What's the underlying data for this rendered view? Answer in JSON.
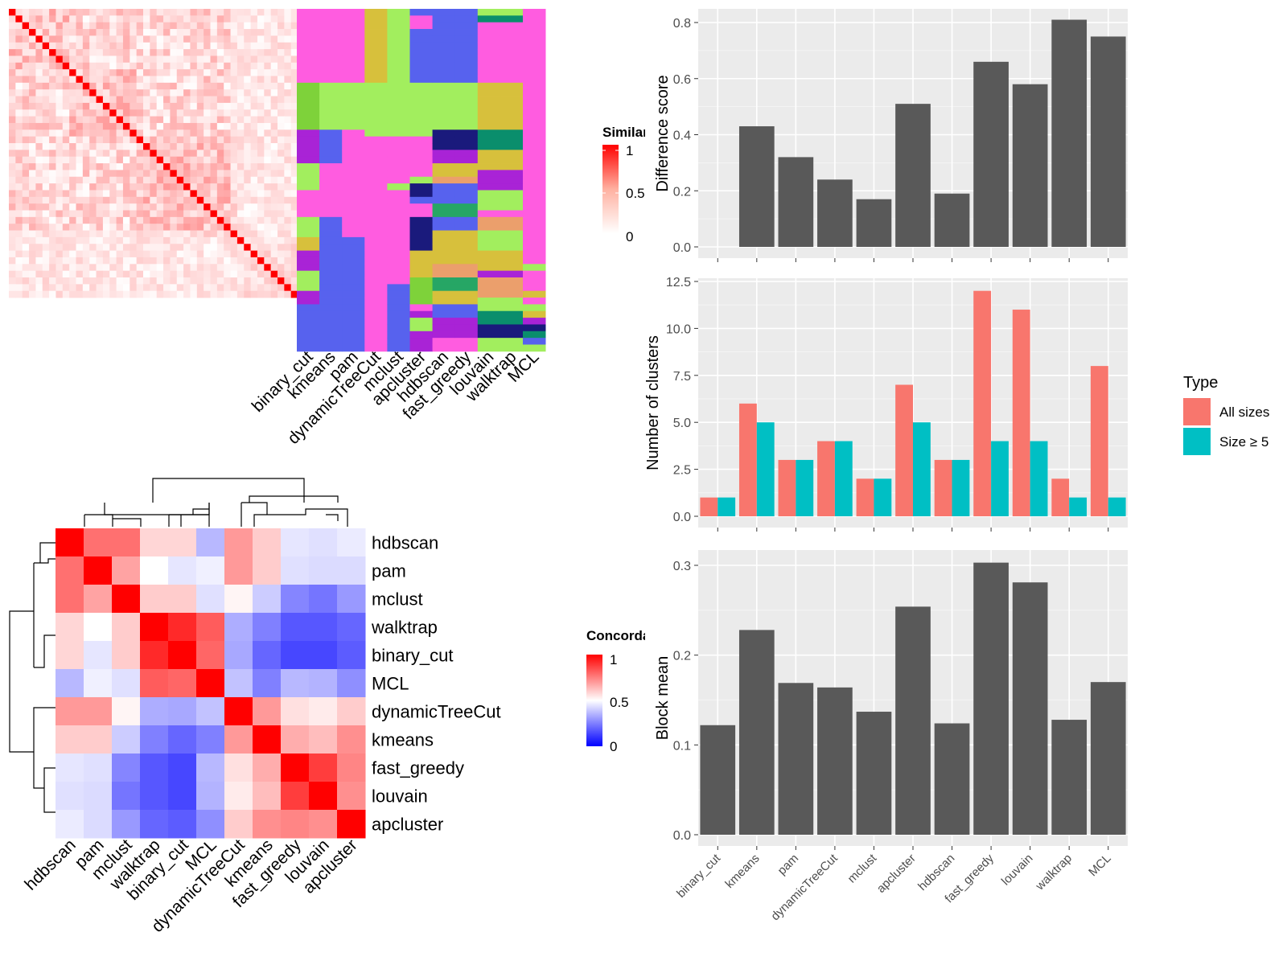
{
  "methods": [
    "binary_cut",
    "kmeans",
    "pam",
    "dynamicTreeCut",
    "mclust",
    "apcluster",
    "hdbscan",
    "fast_greedy",
    "louvain",
    "walktrap",
    "MCL"
  ],
  "similarity_legend": {
    "title": "Similarity",
    "ticks": [
      "1",
      "0.5",
      "0"
    ]
  },
  "concordance_legend": {
    "title": "Concordance",
    "ticks": [
      "1",
      "0.5",
      "0"
    ]
  },
  "colors": {
    "panel_bg": "#ebebeb",
    "grid": "#ffffff",
    "bar": "#595959",
    "all_sizes": "#f8766d",
    "size_ge5": "#00bfc4",
    "sim_high": "#ff0000",
    "conc_high": "#ff0000",
    "conc_mid": "#ffffff",
    "conc_low": "#0000ff"
  },
  "cluster_palette": [
    "#ff5ce0",
    "#a2ee5e",
    "#5762ee",
    "#d7c03c",
    "#7ed23a",
    "#a923d6",
    "#1a1a7c",
    "#0a8e6c",
    "#eb9f6c",
    "#26a665"
  ],
  "concordance_order": [
    "hdbscan",
    "pam",
    "mclust",
    "walktrap",
    "binary_cut",
    "MCL",
    "dynamicTreeCut",
    "kmeans",
    "fast_greedy",
    "louvain",
    "apcluster"
  ],
  "concordance_matrix": [
    [
      1.0,
      0.78,
      0.78,
      0.58,
      0.58,
      0.36,
      0.7,
      0.6,
      0.45,
      0.44,
      0.46
    ],
    [
      0.78,
      1.0,
      0.68,
      0.5,
      0.45,
      0.47,
      0.7,
      0.6,
      0.44,
      0.43,
      0.43
    ],
    [
      0.78,
      0.68,
      1.0,
      0.6,
      0.6,
      0.44,
      0.52,
      0.4,
      0.26,
      0.23,
      0.3
    ],
    [
      0.58,
      0.5,
      0.6,
      1.0,
      0.92,
      0.82,
      0.34,
      0.25,
      0.17,
      0.17,
      0.2
    ],
    [
      0.58,
      0.45,
      0.6,
      0.92,
      1.0,
      0.8,
      0.33,
      0.2,
      0.14,
      0.14,
      0.18
    ],
    [
      0.36,
      0.47,
      0.44,
      0.82,
      0.8,
      1.0,
      0.38,
      0.25,
      0.36,
      0.35,
      0.28
    ],
    [
      0.7,
      0.7,
      0.52,
      0.34,
      0.33,
      0.38,
      1.0,
      0.7,
      0.56,
      0.54,
      0.6
    ],
    [
      0.6,
      0.6,
      0.4,
      0.25,
      0.2,
      0.25,
      0.7,
      1.0,
      0.66,
      0.63,
      0.72
    ],
    [
      0.45,
      0.44,
      0.26,
      0.17,
      0.14,
      0.36,
      0.56,
      0.66,
      1.0,
      0.88,
      0.74
    ],
    [
      0.44,
      0.43,
      0.23,
      0.17,
      0.14,
      0.35,
      0.54,
      0.63,
      0.88,
      1.0,
      0.72
    ],
    [
      0.46,
      0.43,
      0.3,
      0.2,
      0.18,
      0.28,
      0.6,
      0.72,
      0.74,
      0.72,
      1.0
    ]
  ],
  "chart_data": [
    {
      "type": "bar",
      "categories": [
        "binary_cut",
        "kmeans",
        "pam",
        "dynamicTreeCut",
        "mclust",
        "apcluster",
        "hdbscan",
        "fast_greedy",
        "louvain",
        "walktrap",
        "MCL"
      ],
      "values": [
        0.0,
        0.43,
        0.32,
        0.24,
        0.17,
        0.51,
        0.19,
        0.66,
        0.58,
        0.81,
        0.75
      ],
      "ylabel": "Difference score",
      "ylim": [
        0,
        0.85
      ],
      "yticks": [
        "0.0",
        "0.2",
        "0.4",
        "0.6",
        "0.8"
      ],
      "grid": true
    },
    {
      "type": "bar",
      "categories": [
        "binary_cut",
        "kmeans",
        "pam",
        "dynamicTreeCut",
        "mclust",
        "apcluster",
        "hdbscan",
        "fast_greedy",
        "louvain",
        "walktrap",
        "MCL"
      ],
      "ylabel": "Number of clusters",
      "ylim": [
        0,
        12.5
      ],
      "yticks": [
        "0.0",
        "2.5",
        "5.0",
        "7.5",
        "10.0",
        "12.5"
      ],
      "legend_title": "Type",
      "legend_position": "right",
      "series": [
        {
          "name": "All sizes",
          "values": [
            1,
            6,
            3,
            4,
            2,
            7,
            3,
            12,
            11,
            2,
            8
          ]
        },
        {
          "name": "Size ≥ 5",
          "values": [
            1,
            5,
            3,
            4,
            2,
            5,
            3,
            4,
            4,
            1,
            1
          ]
        }
      ],
      "grid": true
    },
    {
      "type": "bar",
      "categories": [
        "binary_cut",
        "kmeans",
        "pam",
        "dynamicTreeCut",
        "mclust",
        "apcluster",
        "hdbscan",
        "fast_greedy",
        "louvain",
        "walktrap",
        "MCL"
      ],
      "values": [
        0.122,
        0.228,
        0.169,
        0.164,
        0.137,
        0.254,
        0.124,
        0.303,
        0.281,
        0.128,
        0.17
      ],
      "ylabel": "Block mean",
      "ylim": [
        0,
        0.31
      ],
      "yticks": [
        "0.0",
        "0.1",
        "0.2",
        "0.3"
      ],
      "grid": true
    }
  ]
}
